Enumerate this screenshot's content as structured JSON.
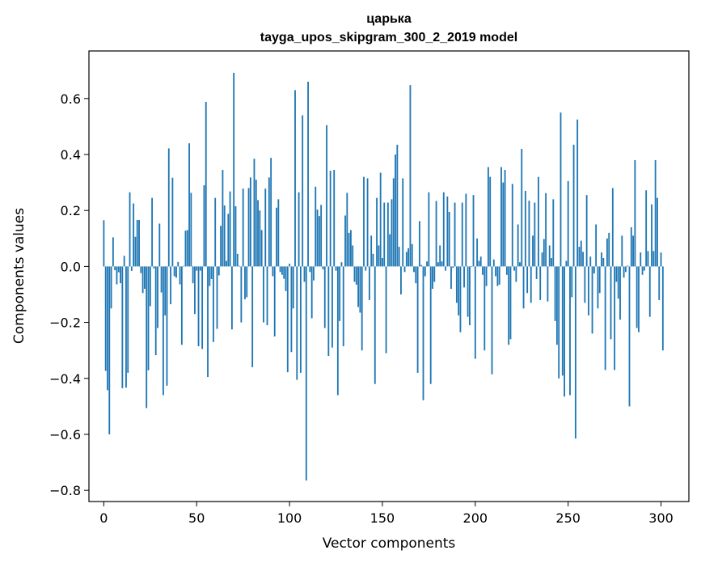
{
  "chart_data": {
    "type": "bar",
    "title": "царька",
    "subtitle": "tayga_upos_skipgram_300_2_2019 model",
    "xlabel": "Vector components",
    "ylabel": "Components values",
    "xlim": [
      -8,
      315
    ],
    "ylim": [
      -0.84,
      0.77
    ],
    "xticks": [
      0,
      50,
      100,
      150,
      200,
      250,
      300
    ],
    "yticks": [
      -0.8,
      -0.6,
      -0.4,
      -0.2,
      0.0,
      0.2,
      0.4,
      0.6
    ],
    "ytick_labels": [
      "−0.8",
      "−0.6",
      "−0.4",
      "−0.2",
      "0.0",
      "0.2",
      "0.4",
      "0.6"
    ],
    "bar_color": "#1f77b4",
    "grid": false,
    "values": [
      0.165,
      -0.373,
      -0.442,
      -0.6,
      -0.15,
      0.104,
      -0.013,
      -0.064,
      -0.021,
      -0.06,
      -0.435,
      0.038,
      -0.433,
      -0.38,
      0.265,
      -0.016,
      0.225,
      0.106,
      0.166,
      0.166,
      -0.024,
      -0.095,
      -0.08,
      -0.506,
      -0.371,
      -0.142,
      0.245,
      -0.007,
      -0.317,
      -0.22,
      0.153,
      -0.093,
      -0.46,
      -0.175,
      -0.426,
      0.422,
      -0.135,
      0.317,
      -0.035,
      -0.04,
      0.016,
      -0.064,
      -0.28,
      0.002,
      0.128,
      0.13,
      0.44,
      0.263,
      -0.06,
      -0.17,
      -0.015,
      -0.285,
      -0.015,
      -0.295,
      0.29,
      0.588,
      -0.395,
      -0.07,
      -0.045,
      -0.27,
      0.245,
      -0.223,
      -0.032,
      0.145,
      0.345,
      0.218,
      0.02,
      0.188,
      0.268,
      -0.225,
      0.692,
      0.215,
      0.045,
      0.002,
      -0.2,
      0.278,
      -0.117,
      -0.11,
      0.28,
      0.318,
      -0.36,
      0.385,
      0.31,
      0.237,
      0.2,
      0.13,
      -0.2,
      0.278,
      -0.21,
      0.318,
      0.388,
      -0.035,
      -0.25,
      0.21,
      0.24,
      -0.02,
      -0.03,
      -0.044,
      -0.088,
      -0.378,
      0.01,
      -0.306,
      -0.15,
      0.63,
      -0.405,
      0.265,
      -0.38,
      0.54,
      -0.055,
      -0.765,
      0.66,
      -0.02,
      -0.185,
      -0.05,
      0.285,
      0.203,
      0.18,
      0.22,
      -0.01,
      -0.22,
      0.505,
      -0.32,
      0.342,
      -0.29,
      0.345,
      -0.015,
      -0.46,
      -0.195,
      0.015,
      -0.285,
      0.182,
      0.263,
      0.12,
      0.13,
      0.075,
      -0.055,
      -0.065,
      -0.145,
      -0.165,
      -0.3,
      0.32,
      -0.015,
      0.315,
      -0.12,
      0.11,
      0.045,
      -0.42,
      0.245,
      0.075,
      0.335,
      0.03,
      0.228,
      -0.31,
      0.228,
      0.115,
      0.24,
      0.315,
      0.4,
      0.435,
      0.07,
      -0.1,
      0.315,
      -0.02,
      0.052,
      0.065,
      0.648,
      0.08,
      -0.02,
      -0.06,
      -0.38,
      0.162,
      0.005,
      -0.478,
      -0.035,
      0.018,
      0.265,
      -0.42,
      -0.08,
      -0.055,
      0.234,
      0.015,
      0.075,
      0.018,
      0.265,
      -0.015,
      0.25,
      0.195,
      -0.08,
      -0.005,
      0.228,
      -0.13,
      -0.175,
      -0.235,
      0.228,
      -0.075,
      0.26,
      -0.18,
      -0.21,
      -0.002,
      0.255,
      -0.33,
      0.1,
      0.02,
      0.035,
      -0.03,
      -0.3,
      -0.07,
      0.355,
      0.32,
      -0.385,
      0.025,
      -0.035,
      -0.07,
      -0.065,
      0.355,
      0.3,
      0.345,
      -0.03,
      -0.28,
      -0.26,
      0.295,
      -0.015,
      -0.055,
      0.15,
      0.015,
      0.42,
      -0.15,
      0.27,
      -0.095,
      0.235,
      -0.13,
      0.11,
      0.228,
      -0.045,
      0.32,
      -0.12,
      0.05,
      0.098,
      0.262,
      -0.125,
      0.075,
      0.03,
      0.24,
      -0.195,
      -0.28,
      -0.4,
      0.55,
      -0.39,
      -0.465,
      0.02,
      0.305,
      -0.46,
      -0.11,
      0.435,
      -0.615,
      0.525,
      0.07,
      0.092,
      0.052,
      -0.13,
      0.255,
      -0.175,
      0.035,
      -0.24,
      -0.025,
      0.15,
      -0.15,
      -0.095,
      0.05,
      0.03,
      -0.37,
      0.1,
      0.12,
      -0.26,
      0.28,
      -0.37,
      -0.055,
      -0.115,
      -0.19,
      0.11,
      -0.04,
      -0.02,
      0.003,
      -0.5,
      0.14,
      0.11,
      0.38,
      -0.22,
      -0.235,
      0.05,
      -0.03,
      -0.015,
      0.272,
      0.055,
      -0.18,
      0.222,
      0.055,
      0.38,
      0.245,
      -0.12,
      0.05,
      -0.3
    ]
  }
}
